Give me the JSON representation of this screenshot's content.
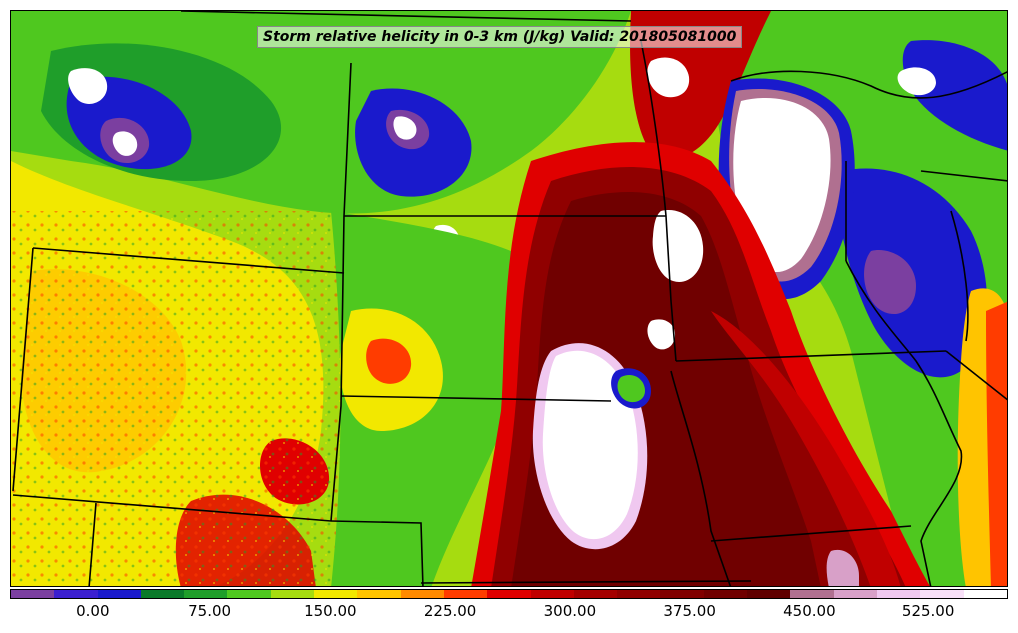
{
  "title": "Storm relative helicity in 0-3 km (J/kg) Valid: 201805081000",
  "colorbar": {
    "colors": [
      "#7b3fa0",
      "#3b1fd0",
      "#1a1acc",
      "#0a7a2a",
      "#1f9e2a",
      "#4fc81f",
      "#a6dc10",
      "#f2e800",
      "#ffc400",
      "#ff8a00",
      "#ff3c00",
      "#e00000",
      "#c00000",
      "#a40000",
      "#900000",
      "#800000",
      "#700000",
      "#600000",
      "#b07090",
      "#d8a0c8",
      "#f0c8f0",
      "#f8e0f8",
      "#ffffff"
    ],
    "ticks": [
      {
        "label": "0.00",
        "frac": 0.083
      },
      {
        "label": "75.00",
        "frac": 0.2
      },
      {
        "label": "150.00",
        "frac": 0.321
      },
      {
        "label": "225.00",
        "frac": 0.441
      },
      {
        "label": "300.00",
        "frac": 0.561
      },
      {
        "label": "375.00",
        "frac": 0.681
      },
      {
        "label": "450.00",
        "frac": 0.801
      },
      {
        "label": "525.00",
        "frac": 0.92
      }
    ]
  }
}
